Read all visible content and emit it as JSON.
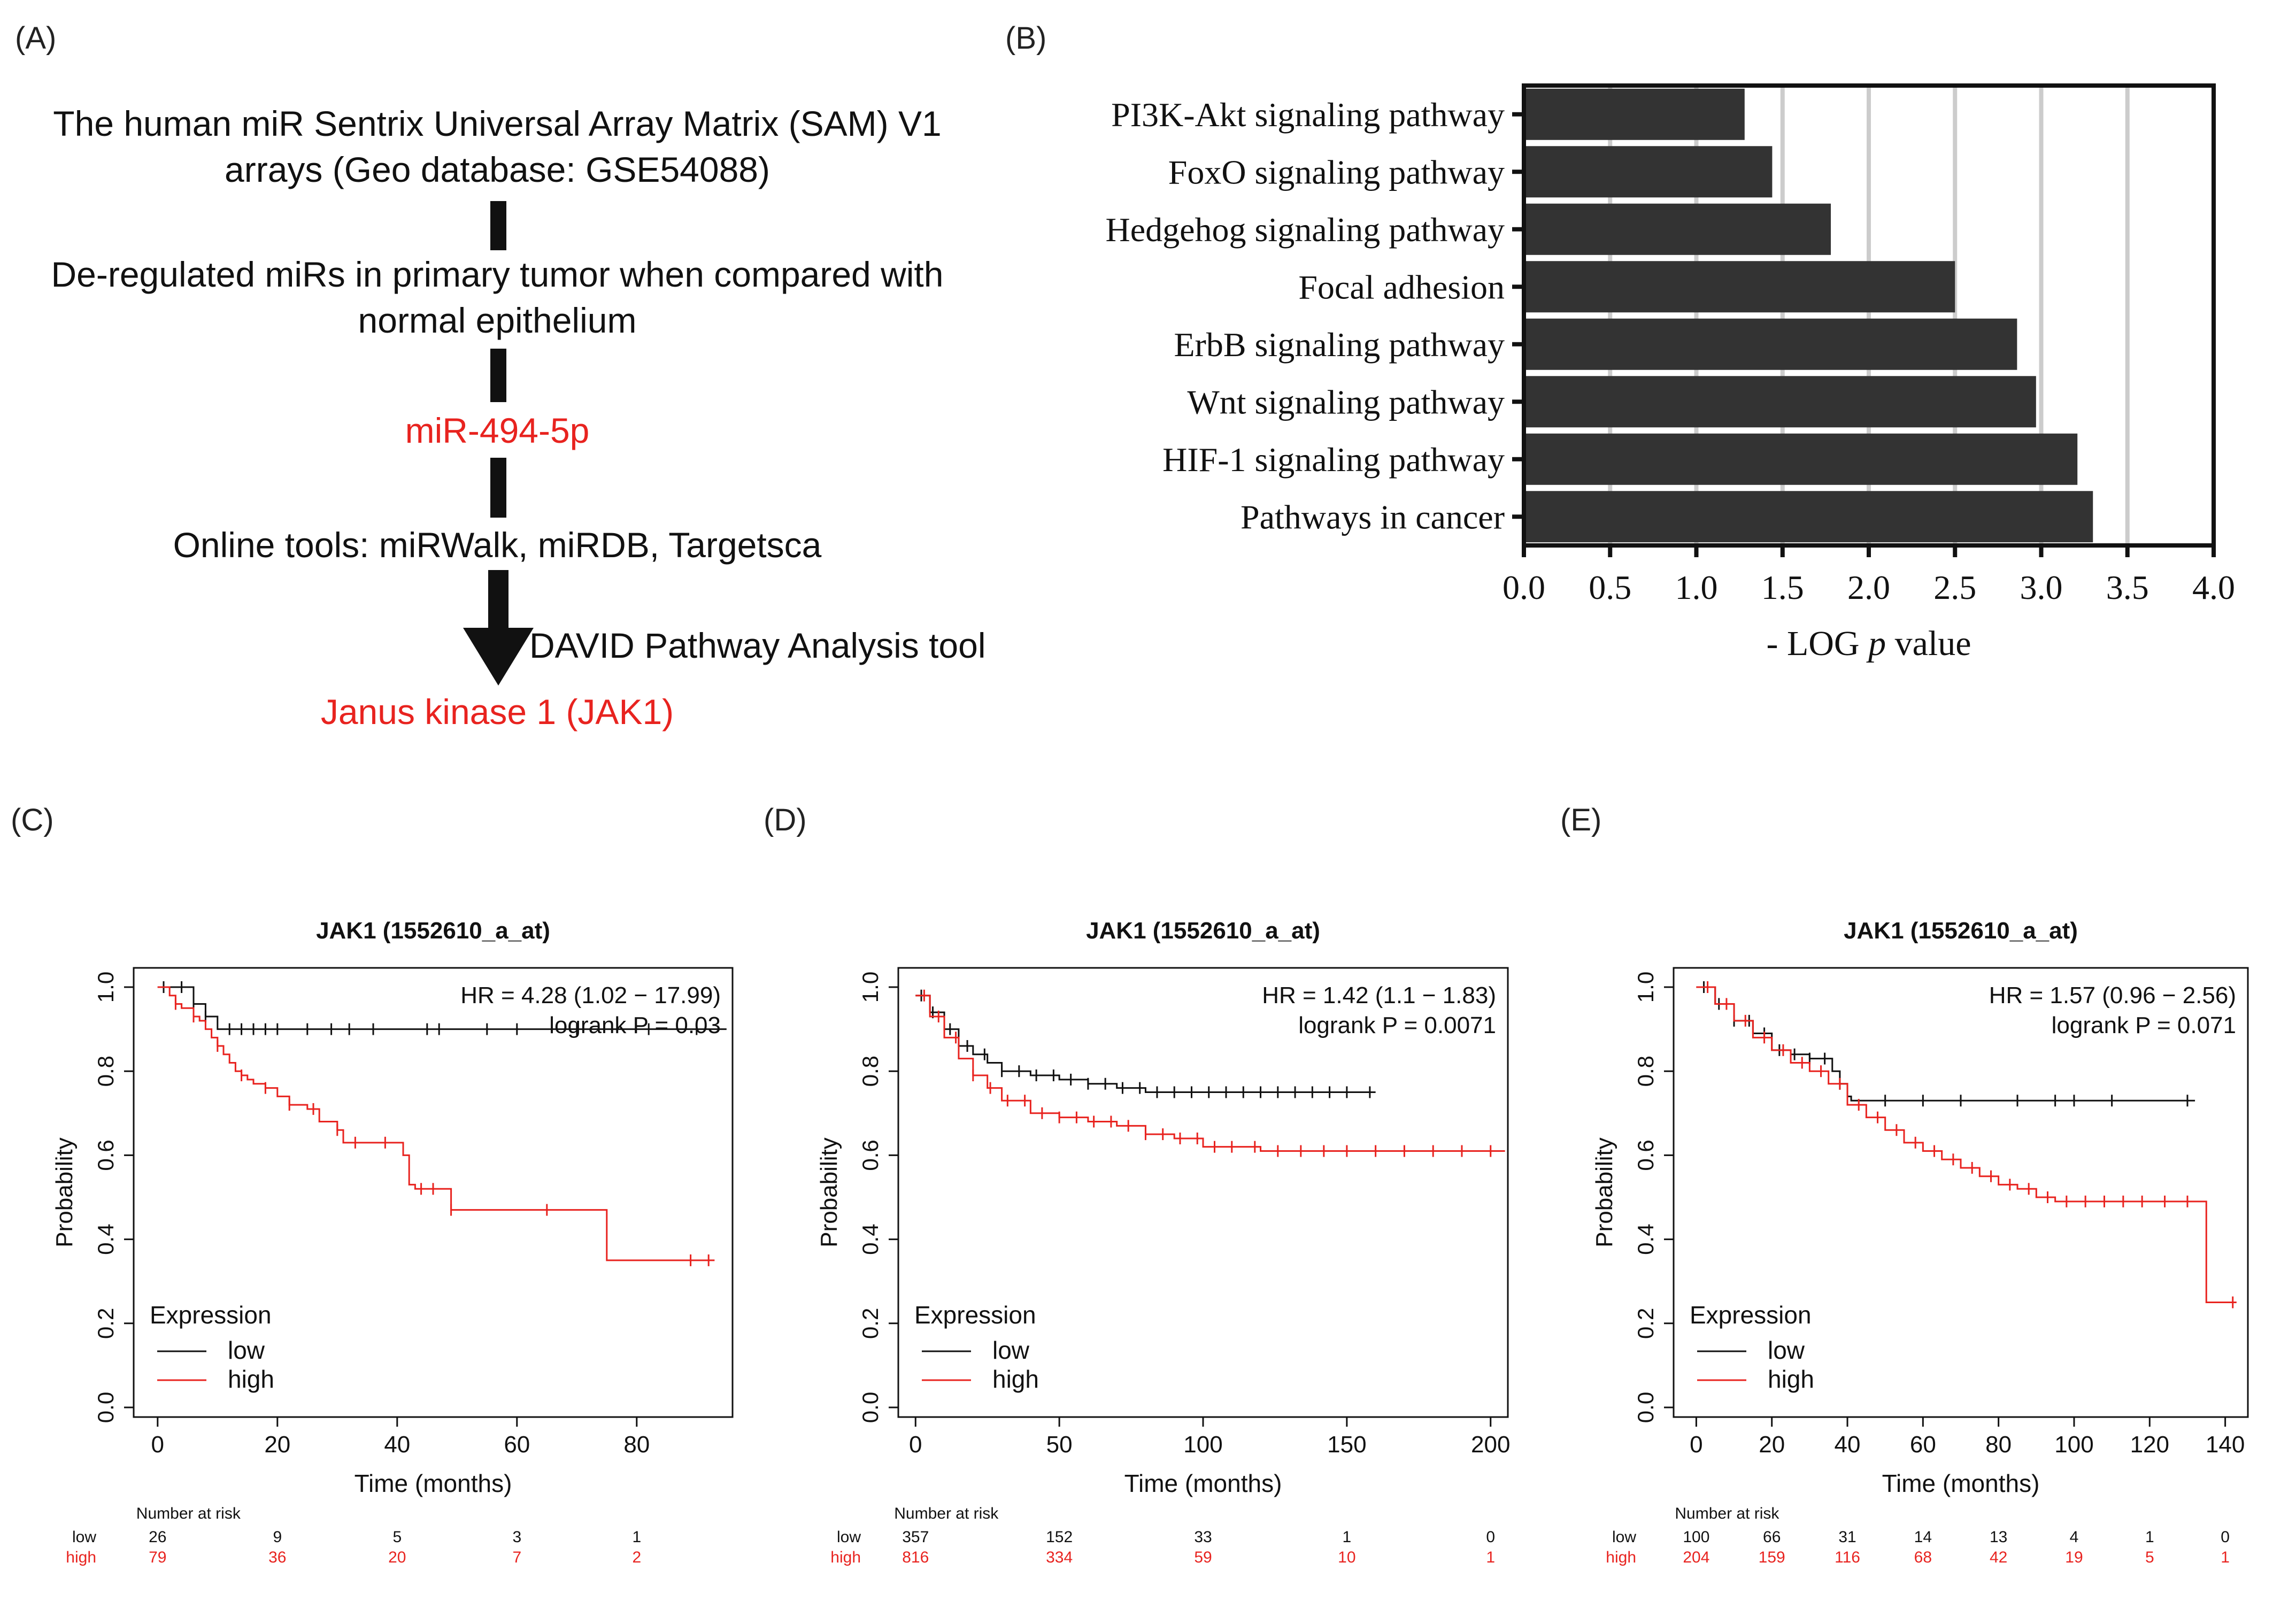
{
  "panels": {
    "a": "(A)",
    "b": "(B)",
    "c": "(C)",
    "d": "(D)",
    "e": "(E)"
  },
  "flow": {
    "step1": "The human miR Sentrix Universal Array Matrix (SAM) V1 arrays (Geo database: GSE54088)",
    "step2": "De-regulated miRs in primary tumor when compared with normal epithelium",
    "step3": "miR-494-5p",
    "step4": "Online tools: miRWalk, miRDB, Targetsca",
    "arrow_label": "DAVID Pathway Analysis tool",
    "step5": "Janus kinase 1 (JAK1)"
  },
  "colors": {
    "bar": "#333333",
    "low": "#111111",
    "high": "#e8231f",
    "grid": "#cccccc"
  },
  "chart_data": [
    {
      "id": "B",
      "type": "bar",
      "orientation": "horizontal",
      "categories": [
        "PI3K-Akt signaling pathway",
        "FoxO signaling pathway",
        "Hedgehog signaling pathway",
        "Focal adhesion",
        "ErbB signaling pathway",
        "Wnt signaling pathway",
        "HIF-1 signaling pathway",
        "Pathways in cancer"
      ],
      "values": [
        1.28,
        1.44,
        1.78,
        2.5,
        2.86,
        2.97,
        3.21,
        3.3
      ],
      "xlim": [
        0,
        4.0
      ],
      "xticks": [
        "0.0",
        "0.5",
        "1.0",
        "1.5",
        "2.0",
        "2.5",
        "3.0",
        "3.5",
        "4.0"
      ],
      "xlabel_prefix": "- LOG ",
      "xlabel_italic": "p",
      "xlabel_suffix": " value",
      "grid": true
    },
    {
      "id": "C",
      "type": "line",
      "title": "JAK1 (1552610_a_at)",
      "hr": "HR = 4.28 (1.02 − 17.99)",
      "logrank": "logrank P = 0.03",
      "xlabel": "Time (months)",
      "ylabel": "Probability",
      "xlim": [
        -4,
        96
      ],
      "xticks": [
        0,
        20,
        40,
        60,
        80
      ],
      "yticks": [
        "0.0",
        "0.2",
        "0.4",
        "0.6",
        "0.8",
        "1.0"
      ],
      "legend_title": "Expression",
      "series": [
        {
          "name": "low",
          "x": [
            0,
            3,
            6,
            8,
            10,
            95
          ],
          "y": [
            1.0,
            1.0,
            0.96,
            0.93,
            0.9,
            0.9
          ],
          "censor_x": [
            1,
            4,
            6,
            8,
            12,
            14,
            16,
            18,
            20,
            25,
            29,
            32,
            36,
            45,
            47,
            55,
            60,
            70,
            82,
            90
          ]
        },
        {
          "name": "high",
          "x": [
            0,
            2,
            3,
            4,
            6,
            7,
            8,
            9,
            10,
            11,
            12,
            13,
            14,
            15,
            16,
            18,
            20,
            22,
            25,
            27,
            30,
            31,
            41,
            42,
            43,
            49,
            60,
            75,
            93
          ],
          "y": [
            1.0,
            0.98,
            0.96,
            0.95,
            0.93,
            0.92,
            0.9,
            0.88,
            0.86,
            0.84,
            0.82,
            0.8,
            0.79,
            0.78,
            0.77,
            0.76,
            0.74,
            0.72,
            0.71,
            0.68,
            0.66,
            0.63,
            0.6,
            0.53,
            0.52,
            0.47,
            0.47,
            0.35,
            0.35
          ],
          "censor_x": [
            3,
            6,
            10,
            14,
            18,
            22,
            26,
            30,
            33,
            38,
            44,
            46,
            49,
            65,
            89,
            92
          ]
        }
      ],
      "risk": {
        "header": "Number at risk",
        "x": [
          0,
          20,
          40,
          60,
          80
        ],
        "low": [
          "26",
          "9",
          "5",
          "3",
          "1"
        ],
        "high": [
          "79",
          "36",
          "20",
          "7",
          "2"
        ]
      }
    },
    {
      "id": "D",
      "type": "line",
      "title": "JAK1 (1552610_a_at)",
      "hr": "HR = 1.42 (1.1 − 1.83)",
      "logrank": "logrank P = 0.0071",
      "xlabel": "Time (months)",
      "ylabel": "Probability",
      "xlim": [
        -6,
        206
      ],
      "xticks": [
        0,
        50,
        100,
        150,
        200
      ],
      "yticks": [
        "0.0",
        "0.2",
        "0.4",
        "0.6",
        "0.8",
        "1.0"
      ],
      "legend_title": "Expression",
      "series": [
        {
          "name": "low",
          "x": [
            0,
            5,
            10,
            15,
            20,
            25,
            30,
            40,
            50,
            60,
            70,
            80,
            160
          ],
          "y": [
            0.98,
            0.94,
            0.9,
            0.86,
            0.84,
            0.82,
            0.8,
            0.79,
            0.78,
            0.77,
            0.76,
            0.75,
            0.75
          ],
          "censor_x": [
            2,
            6,
            12,
            18,
            24,
            30,
            36,
            42,
            48,
            54,
            60,
            66,
            72,
            78,
            84,
            90,
            96,
            102,
            108,
            114,
            120,
            126,
            132,
            138,
            144,
            150,
            158
          ]
        },
        {
          "name": "high",
          "x": [
            0,
            5,
            10,
            15,
            20,
            25,
            30,
            40,
            50,
            60,
            70,
            80,
            90,
            100,
            120,
            205
          ],
          "y": [
            0.98,
            0.93,
            0.88,
            0.83,
            0.79,
            0.76,
            0.73,
            0.7,
            0.69,
            0.68,
            0.67,
            0.65,
            0.64,
            0.62,
            0.61,
            0.61
          ],
          "censor_x": [
            3,
            8,
            14,
            20,
            26,
            32,
            38,
            44,
            50,
            56,
            62,
            68,
            74,
            80,
            86,
            92,
            98,
            104,
            110,
            118,
            126,
            134,
            142,
            150,
            160,
            170,
            180,
            190,
            200
          ]
        }
      ],
      "risk": {
        "header": "Number at risk",
        "x": [
          0,
          50,
          100,
          150,
          200
        ],
        "low": [
          "357",
          "152",
          "33",
          "1",
          "0"
        ],
        "high": [
          "816",
          "334",
          "59",
          "10",
          "1"
        ]
      }
    },
    {
      "id": "E",
      "type": "line",
      "title": "JAK1 (1552610_a_at)",
      "hr": "HR = 1.57 (0.96 − 2.56)",
      "logrank": "logrank P = 0.071",
      "xlabel": "Time (months)",
      "ylabel": "Probability",
      "xlim": [
        -6,
        146
      ],
      "xticks": [
        0,
        20,
        40,
        60,
        80,
        100,
        120,
        140
      ],
      "yticks": [
        "0.0",
        "0.2",
        "0.4",
        "0.6",
        "0.8",
        "1.0"
      ],
      "legend_title": "Expression",
      "series": [
        {
          "name": "low",
          "x": [
            0,
            5,
            10,
            15,
            20,
            25,
            30,
            33,
            36,
            38,
            40,
            41,
            132
          ],
          "y": [
            1.0,
            0.96,
            0.92,
            0.89,
            0.85,
            0.84,
            0.83,
            0.83,
            0.8,
            0.77,
            0.74,
            0.73,
            0.73
          ],
          "censor_x": [
            2,
            6,
            10,
            14,
            18,
            22,
            26,
            30,
            34,
            38,
            50,
            60,
            70,
            85,
            95,
            100,
            110,
            130
          ]
        },
        {
          "name": "high",
          "x": [
            0,
            5,
            10,
            15,
            20,
            25,
            30,
            35,
            40,
            45,
            50,
            55,
            60,
            65,
            70,
            75,
            80,
            85,
            90,
            95,
            134,
            135,
            143
          ],
          "y": [
            1.0,
            0.96,
            0.92,
            0.88,
            0.85,
            0.82,
            0.8,
            0.77,
            0.72,
            0.69,
            0.66,
            0.63,
            0.61,
            0.59,
            0.57,
            0.55,
            0.53,
            0.52,
            0.5,
            0.49,
            0.49,
            0.25,
            0.25
          ],
          "censor_x": [
            3,
            8,
            13,
            18,
            23,
            28,
            33,
            38,
            43,
            48,
            53,
            58,
            63,
            68,
            73,
            78,
            83,
            88,
            93,
            98,
            103,
            108,
            113,
            118,
            124,
            130,
            142
          ]
        }
      ],
      "risk": {
        "header": "Number at risk",
        "x": [
          0,
          20,
          40,
          60,
          80,
          100,
          120,
          140
        ],
        "low": [
          "100",
          "66",
          "31",
          "14",
          "13",
          "4",
          "1",
          "0"
        ],
        "high": [
          "204",
          "159",
          "116",
          "68",
          "42",
          "19",
          "5",
          "1"
        ]
      }
    }
  ]
}
